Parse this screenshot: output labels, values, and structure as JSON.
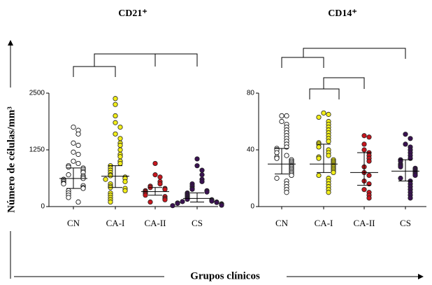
{
  "y_label": "Número de células/mm³",
  "x_label": "Grupos clínicos",
  "chart_data": [
    {
      "type": "dotplot",
      "title": "CD21⁺",
      "categories": [
        "CN",
        "CA-I",
        "CA-II",
        "CS"
      ],
      "colors": [
        "#ffffff",
        "#f2ee1a",
        "#c8161e",
        "#3a1252"
      ],
      "ylim": [
        0,
        2500
      ],
      "yticks": [
        0,
        1250,
        2500
      ],
      "values": [
        [
          1750,
          1680,
          1600,
          1400,
          1350,
          1200,
          1150,
          1000,
          950,
          900,
          870,
          850,
          820,
          780,
          750,
          700,
          680,
          650,
          620,
          600,
          580,
          550,
          520,
          500,
          460,
          420,
          400,
          350,
          300,
          250,
          200,
          100
        ],
        [
          2380,
          2250,
          2000,
          1850,
          1750,
          1600,
          1500,
          1400,
          1350,
          1250,
          1150,
          1100,
          1000,
          950,
          900,
          850,
          800,
          750,
          700,
          680,
          650,
          620,
          600,
          550,
          500,
          450,
          420,
          400,
          350,
          300,
          250,
          200,
          150,
          100
        ],
        [
          950,
          700,
          650,
          550,
          500,
          450,
          420,
          400,
          380,
          350,
          330,
          300,
          280,
          250,
          220,
          180,
          150,
          100
        ],
        [
          1050,
          900,
          800,
          700,
          600,
          550,
          500,
          450,
          400,
          380,
          350,
          320,
          300,
          280,
          250,
          230,
          200,
          180,
          160,
          150,
          140,
          120,
          110,
          100,
          90,
          80,
          70,
          60,
          50,
          40,
          30,
          20
        ]
      ],
      "medians": [
        620,
        670,
        330,
        180
      ],
      "q1": [
        400,
        420,
        250,
        100
      ],
      "q3": [
        850,
        900,
        420,
        300
      ]
    },
    {
      "type": "dotplot",
      "title": "CD14⁺",
      "categories": [
        "CN",
        "CA-I",
        "CA-II",
        "CS"
      ],
      "colors": [
        "#ffffff",
        "#f2ee1a",
        "#c8161e",
        "#3a1252"
      ],
      "ylim": [
        0,
        80
      ],
      "yticks": [
        0,
        40,
        80
      ],
      "values": [
        [
          64,
          64,
          60,
          58,
          56,
          54,
          52,
          50,
          48,
          46,
          44,
          42,
          41,
          40,
          38,
          36,
          35,
          34,
          33,
          32,
          31,
          30,
          29,
          28,
          27,
          26,
          25,
          24,
          23,
          22,
          20,
          18,
          16,
          14,
          12,
          10
        ],
        [
          66,
          65,
          63,
          60,
          58,
          56,
          54,
          52,
          50,
          48,
          46,
          45,
          44,
          42,
          40,
          38,
          36,
          35,
          34,
          33,
          32,
          31,
          30,
          29,
          28,
          27,
          26,
          25,
          24,
          22,
          20,
          18,
          16,
          14,
          12,
          10
        ],
        [
          50,
          49,
          44,
          40,
          38,
          36,
          34,
          32,
          28,
          24,
          22,
          18,
          16,
          12,
          10,
          8,
          6
        ],
        [
          51,
          48,
          44,
          42,
          40,
          38,
          36,
          34,
          33,
          32,
          30,
          29,
          28,
          27,
          26,
          25,
          24,
          23,
          22,
          20,
          18,
          16,
          14,
          12,
          10,
          8,
          6
        ]
      ],
      "medians": [
        30,
        30,
        24,
        25
      ],
      "q1": [
        23,
        24,
        15,
        18
      ],
      "q3": [
        41,
        44,
        38,
        33
      ]
    }
  ]
}
